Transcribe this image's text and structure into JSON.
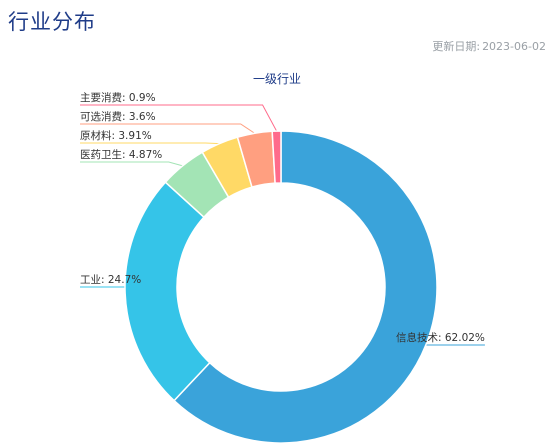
{
  "page": {
    "title": "行业分布",
    "update_label": "更新日期:",
    "update_value": "2023-06-02"
  },
  "chart_data": {
    "type": "pie",
    "variant": "donut",
    "title": "一级行业",
    "slices": [
      {
        "label": "信息技术",
        "value": 62.02,
        "color": "#3aa3da"
      },
      {
        "label": "工业",
        "value": 24.7,
        "color": "#35c4e8"
      },
      {
        "label": "医药卫生",
        "value": 4.87,
        "color": "#a3e4b5"
      },
      {
        "label": "原材料",
        "value": 3.91,
        "color": "#ffd966"
      },
      {
        "label": "可选消费",
        "value": 3.6,
        "color": "#ff9f80"
      },
      {
        "label": "主要消费",
        "value": 0.9,
        "color": "#ff6b8b"
      }
    ],
    "labels": [
      "信息技术: 62.02%",
      "工业: 24.7%",
      "医药卫生: 4.87%",
      "原材料: 3.91%",
      "可选消费: 3.6%",
      "主要消费: 0.9%"
    ]
  }
}
